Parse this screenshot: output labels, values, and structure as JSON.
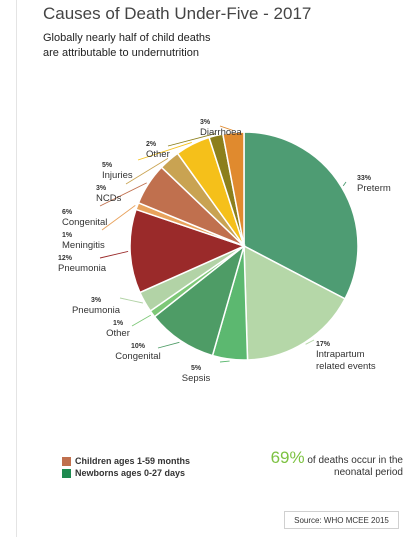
{
  "header": {
    "title": "Causes of Death Under-Five - 2017",
    "subtitle_line1": "Globally nearly half of child deaths",
    "subtitle_line2": "are attributable to undernutrition"
  },
  "chart_data": {
    "type": "pie",
    "slices": [
      {
        "label": "Preterm",
        "pct_label": "33%",
        "value": 33,
        "color": "#4e9c73",
        "group": "Newborns ages 0-27 days"
      },
      {
        "label": "Intrapartum related events",
        "pct_label": "17%",
        "value": 17,
        "color": "#b5d7a8",
        "group": "Newborns ages 0-27 days"
      },
      {
        "label": "Sepsis",
        "pct_label": "5%",
        "value": 5,
        "color": "#5cb870",
        "group": "Newborns ages 0-27 days"
      },
      {
        "label": "Congenital",
        "pct_label": "10%",
        "value": 10,
        "color": "#4e9c66",
        "group": "Newborns ages 0-27 days"
      },
      {
        "label": "Other",
        "pct_label": "1%",
        "value": 1,
        "color": "#7ec878",
        "group": "Newborns ages 0-27 days"
      },
      {
        "label": "Pneumonia",
        "pct_label": "3%",
        "value": 3,
        "color": "#b2d3a6",
        "group": "Newborns ages 0-27 days"
      },
      {
        "label": "Pneumonia",
        "pct_label": "12%",
        "value": 12,
        "color": "#9a2a2a",
        "group": "Children ages 1-59 months"
      },
      {
        "label": "Meningitis",
        "pct_label": "1%",
        "value": 1,
        "color": "#e8a25c",
        "group": "Children ages 1-59 months"
      },
      {
        "label": "Congenital",
        "pct_label": "6%",
        "value": 6,
        "color": "#c0704e",
        "group": "Children ages 1-59 months"
      },
      {
        "label": "NCDs",
        "pct_label": "3%",
        "value": 3,
        "color": "#c9a352",
        "group": "Children ages 1-59 months"
      },
      {
        "label": "Injuries",
        "pct_label": "5%",
        "value": 5,
        "color": "#f5c01a",
        "group": "Children ages 1-59 months"
      },
      {
        "label": "Other",
        "pct_label": "2%",
        "value": 2,
        "color": "#8c7f1c",
        "group": "Children ages 1-59 months"
      },
      {
        "label": "Diarrhoea",
        "pct_label": "3%",
        "value": 3,
        "color": "#e08a2e",
        "group": "Children ages 1-59 months"
      }
    ]
  },
  "legend": [
    {
      "label": "Children ages 1-59 months",
      "color": "#c0704e"
    },
    {
      "label": "Newborns ages 0-27 days",
      "color": "#1e8a50"
    }
  ],
  "highlight": {
    "percent": "69%",
    "text_part1": " of deaths occur in the",
    "text_part2": "neonatal period"
  },
  "source": "Source: WHO MCEE 2015"
}
